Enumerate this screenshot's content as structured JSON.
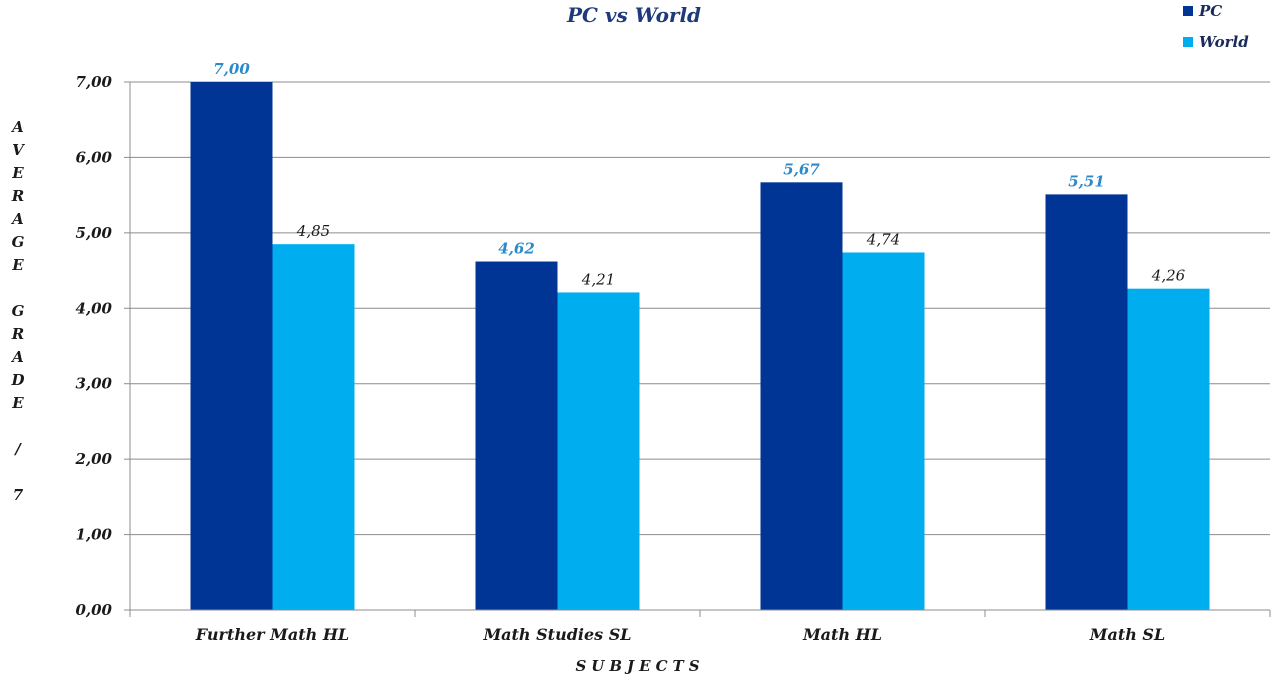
{
  "chart_data": {
    "type": "bar",
    "subtitle": "PC vs World",
    "xlabel": "SUBJECTS",
    "ylabel": "AVERAGE GRADE / 7",
    "ylim": [
      0,
      7
    ],
    "yticks": [
      "0,00",
      "1,00",
      "2,00",
      "3,00",
      "4,00",
      "5,00",
      "6,00",
      "7,00"
    ],
    "grid": true,
    "legend_position": "top-right",
    "categories": [
      "Further Math HL",
      "Math Studies SL",
      "Math HL",
      "Math SL"
    ],
    "series": [
      {
        "name": "PC",
        "color": "#003595",
        "values": [
          7.0,
          4.62,
          5.67,
          5.51
        ],
        "labels": [
          "7,00",
          "4,62",
          "5,67",
          "5,51"
        ]
      },
      {
        "name": "World",
        "color": "#00adef",
        "values": [
          4.85,
          4.21,
          4.74,
          4.26
        ],
        "labels": [
          "4,85",
          "4,21",
          "4,74",
          "4,26"
        ]
      }
    ]
  }
}
